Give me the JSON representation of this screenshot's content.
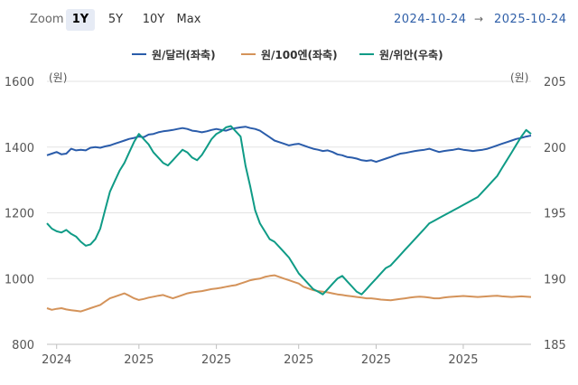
{
  "toolbar": {
    "zoom_label": "Zoom",
    "buttons": [
      "1Y",
      "5Y",
      "10Y",
      "Max"
    ],
    "active": "1Y",
    "range_start": "2024-10-24",
    "range_separator": "→",
    "range_end": "2025-10-24"
  },
  "legend": [
    {
      "label": "원/달러(좌축)",
      "color": "#2a5caa"
    },
    {
      "label": "원/100엔(좌축)",
      "color": "#d4935a"
    },
    {
      "label": "원/위안(우축)",
      "color": "#0f9b86"
    }
  ],
  "chart_data": {
    "type": "line",
    "title": "",
    "left_axis": {
      "unit": "(원)",
      "ticks": [
        800,
        1000,
        1200,
        1400,
        1600
      ],
      "ylim": [
        800,
        1600
      ]
    },
    "right_axis": {
      "unit": "(원)",
      "ticks": [
        185,
        190,
        195,
        200,
        205
      ],
      "ylim": [
        185,
        205
      ]
    },
    "x_labels": [
      "2024",
      "2025",
      "2025",
      "2025",
      "2025",
      "2025"
    ],
    "x_label_positions": [
      0.02,
      0.19,
      0.35,
      0.52,
      0.68,
      0.86
    ],
    "series": [
      {
        "name": "원/달러(좌축)",
        "axis": "left",
        "color": "#2a5caa",
        "values": [
          1375,
          1380,
          1385,
          1378,
          1380,
          1395,
          1390,
          1392,
          1390,
          1398,
          1400,
          1398,
          1402,
          1405,
          1410,
          1415,
          1420,
          1425,
          1428,
          1432,
          1430,
          1438,
          1440,
          1445,
          1448,
          1450,
          1452,
          1455,
          1458,
          1455,
          1450,
          1448,
          1445,
          1448,
          1452,
          1455,
          1452,
          1450,
          1455,
          1458,
          1460,
          1462,
          1458,
          1455,
          1450,
          1440,
          1430,
          1420,
          1415,
          1410,
          1405,
          1408,
          1410,
          1405,
          1400,
          1395,
          1392,
          1388,
          1390,
          1385,
          1378,
          1375,
          1370,
          1368,
          1365,
          1360,
          1358,
          1360,
          1355,
          1360,
          1365,
          1370,
          1375,
          1380,
          1382,
          1385,
          1388,
          1390,
          1392,
          1395,
          1390,
          1385,
          1388,
          1390,
          1392,
          1395,
          1392,
          1390,
          1388,
          1390,
          1392,
          1395,
          1400,
          1405,
          1410,
          1415,
          1420,
          1425,
          1428,
          1432,
          1435
        ]
      },
      {
        "name": "원/100엔(좌축)",
        "axis": "left",
        "color": "#d4935a",
        "values": [
          910,
          905,
          908,
          910,
          906,
          904,
          902,
          900,
          905,
          910,
          915,
          920,
          930,
          940,
          945,
          950,
          955,
          948,
          940,
          935,
          938,
          942,
          945,
          948,
          950,
          945,
          940,
          945,
          950,
          955,
          958,
          960,
          962,
          965,
          968,
          970,
          972,
          975,
          978,
          980,
          985,
          990,
          995,
          998,
          1000,
          1005,
          1008,
          1010,
          1005,
          1000,
          995,
          990,
          985,
          975,
          970,
          965,
          962,
          960,
          958,
          955,
          952,
          950,
          948,
          946,
          944,
          942,
          940,
          940,
          938,
          936,
          935,
          934,
          936,
          938,
          940,
          942,
          944,
          945,
          944,
          942,
          940,
          940,
          942,
          944,
          945,
          946,
          947,
          946,
          945,
          944,
          945,
          946,
          947,
          948,
          946,
          945,
          944,
          945,
          946,
          945,
          944
        ]
      },
      {
        "name": "원/위안(우축)",
        "axis": "right",
        "color": "#0f9b86",
        "values": [
          194.2,
          193.8,
          193.6,
          193.5,
          193.7,
          193.4,
          193.2,
          192.8,
          192.5,
          192.6,
          193.0,
          193.8,
          195.2,
          196.6,
          197.4,
          198.2,
          198.8,
          199.6,
          200.4,
          201.0,
          200.6,
          200.2,
          199.6,
          199.2,
          198.8,
          198.6,
          199.0,
          199.4,
          199.8,
          199.6,
          199.2,
          199.0,
          199.4,
          200.0,
          200.6,
          201.0,
          201.2,
          201.5,
          201.6,
          201.2,
          200.8,
          198.6,
          197.0,
          195.2,
          194.2,
          193.6,
          193.0,
          192.8,
          192.4,
          192.0,
          191.6,
          191.0,
          190.4,
          190.0,
          189.6,
          189.2,
          189.0,
          188.8,
          189.2,
          189.6,
          190.0,
          190.2,
          189.8,
          189.4,
          189.0,
          188.8,
          189.2,
          189.6,
          190.0,
          190.4,
          190.8,
          191.0,
          191.4,
          191.8,
          192.2,
          192.6,
          193.0,
          193.4,
          193.8,
          194.2,
          194.4,
          194.6,
          194.8,
          195.0,
          195.2,
          195.4,
          195.6,
          195.8,
          196.0,
          196.2,
          196.6,
          197.0,
          197.4,
          197.8,
          198.4,
          199.0,
          199.6,
          200.2,
          200.8,
          201.3,
          201.0
        ]
      }
    ]
  }
}
